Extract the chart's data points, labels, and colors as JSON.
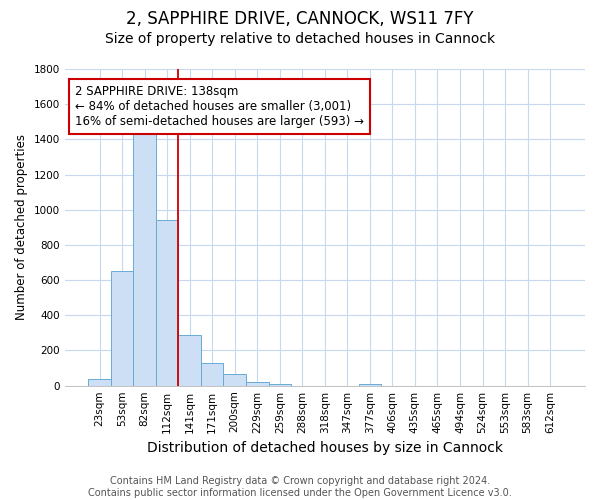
{
  "title1": "2, SAPPHIRE DRIVE, CANNOCK, WS11 7FY",
  "title2": "Size of property relative to detached houses in Cannock",
  "xlabel": "Distribution of detached houses by size in Cannock",
  "ylabel": "Number of detached properties",
  "categories": [
    "23sqm",
    "53sqm",
    "82sqm",
    "112sqm",
    "141sqm",
    "171sqm",
    "200sqm",
    "229sqm",
    "259sqm",
    "288sqm",
    "318sqm",
    "347sqm",
    "377sqm",
    "406sqm",
    "435sqm",
    "465sqm",
    "494sqm",
    "524sqm",
    "553sqm",
    "583sqm",
    "612sqm"
  ],
  "values": [
    40,
    650,
    1480,
    940,
    290,
    130,
    65,
    20,
    10,
    0,
    0,
    0,
    10,
    0,
    0,
    0,
    0,
    0,
    0,
    0,
    0
  ],
  "bar_color": "#ccdff5",
  "bar_edge_color": "#6aaad4",
  "vline_color": "#cc0000",
  "annotation_line1": "2 SAPPHIRE DRIVE: 138sqm",
  "annotation_line2": "← 84% of detached houses are smaller (3,001)",
  "annotation_line3": "16% of semi-detached houses are larger (593) →",
  "annotation_box_color": "white",
  "annotation_box_edge": "#cc0000",
  "ylim": [
    0,
    1800
  ],
  "yticks": [
    0,
    200,
    400,
    600,
    800,
    1000,
    1200,
    1400,
    1600,
    1800
  ],
  "footnote": "Contains HM Land Registry data © Crown copyright and database right 2024.\nContains public sector information licensed under the Open Government Licence v3.0.",
  "bg_color": "#ffffff",
  "plot_bg_color": "#ffffff",
  "grid_color": "#c8d8ee",
  "title1_fontsize": 12,
  "title2_fontsize": 10,
  "xlabel_fontsize": 10,
  "ylabel_fontsize": 8.5,
  "tick_fontsize": 7.5,
  "footnote_fontsize": 7,
  "annotation_fontsize": 8.5
}
